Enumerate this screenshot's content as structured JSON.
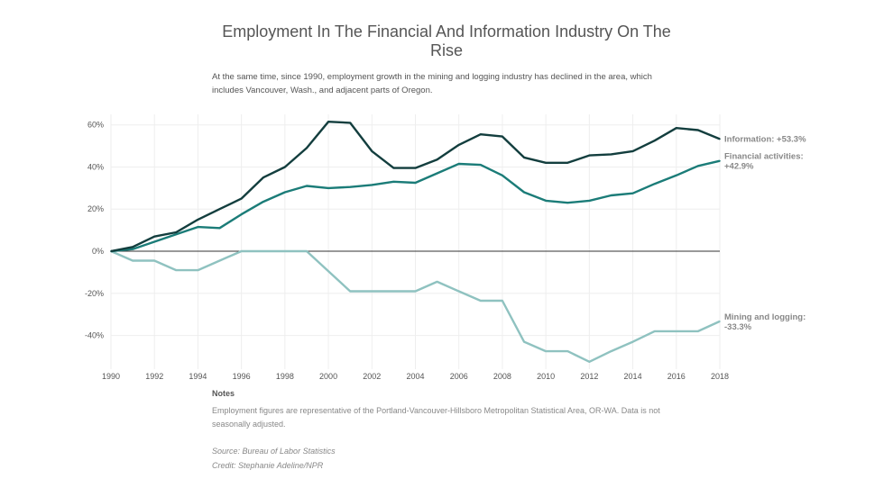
{
  "title": "Employment In The Financial And Information Industry On The Rise",
  "subtitle": "At the same time, since 1990, employment growth in the mining and logging industry has declined in the area, which includes Vancouver, Wash., and adjacent parts of Oregon.",
  "notes": {
    "heading": "Notes",
    "text": "Employment figures are representative of the Portland-Vancouver-Hillsboro Metropolitan Statistical Area, OR-WA. Data is not seasonally adjusted.",
    "source": "Source: Bureau of Labor Statistics",
    "credit": "Credit: Stephanie Adeline/NPR"
  },
  "colors": {
    "information": "#133e3e",
    "financial": "#1b7c78",
    "mining": "#8fc2c0",
    "grid": "#eeeeee",
    "zero": "#333333"
  },
  "chart_data": {
    "type": "line",
    "title": "Employment In The Financial And Information Industry On The Rise",
    "xlabel": "",
    "ylabel": "",
    "xlim": [
      1990,
      2018
    ],
    "ylim": [
      -56,
      65
    ],
    "grid": true,
    "x": [
      1990,
      1991,
      1992,
      1993,
      1994,
      1995,
      1996,
      1997,
      1998,
      1999,
      2000,
      2001,
      2002,
      2003,
      2004,
      2005,
      2006,
      2007,
      2008,
      2009,
      2010,
      2011,
      2012,
      2013,
      2014,
      2015,
      2016,
      2017,
      2018
    ],
    "x_ticks": [
      1990,
      1992,
      1994,
      1996,
      1998,
      2000,
      2002,
      2004,
      2006,
      2008,
      2010,
      2012,
      2014,
      2016,
      2018
    ],
    "y_ticks": [
      -40,
      -20,
      0,
      20,
      40,
      60
    ],
    "y_tick_labels": [
      "-40%",
      "-20%",
      "0%",
      "20%",
      "40%",
      "60%"
    ],
    "series": [
      {
        "name": "Information",
        "label": "Information: +53.3%",
        "label_lines": [
          "Information: +53.3%"
        ],
        "color_key": "information",
        "values": [
          0,
          2,
          7,
          9,
          15,
          20,
          25,
          35,
          40,
          49,
          61.5,
          61,
          47.5,
          39.5,
          39.5,
          43.5,
          50.5,
          55.5,
          54.5,
          44.5,
          42,
          42,
          45.5,
          46,
          47.5,
          52.5,
          58.5,
          57.5,
          53.3
        ]
      },
      {
        "name": "Financial activities",
        "label": "Financial activities: +42.9%",
        "label_lines": [
          "Financial activities:",
          "+42.9%"
        ],
        "color_key": "financial",
        "values": [
          0,
          1,
          4.5,
          8,
          11.5,
          11,
          17.5,
          23.5,
          28,
          31,
          30,
          30.5,
          31.5,
          33,
          32.5,
          37,
          41.5,
          41,
          36,
          28,
          24,
          23,
          24,
          26.5,
          27.5,
          32,
          36,
          40.5,
          42.9
        ]
      },
      {
        "name": "Mining and logging",
        "label": "Mining and logging: -33.3%",
        "label_lines": [
          "Mining and logging:",
          "-33.3%"
        ],
        "color_key": "mining",
        "values": [
          0,
          -4.5,
          -4.5,
          -9,
          -9,
          -4.5,
          0,
          0,
          0,
          0,
          -9.5,
          -19,
          -19,
          -19,
          -19,
          -14.5,
          -19,
          -23.5,
          -23.5,
          -43,
          -47.5,
          -47.5,
          -52.5,
          -47.5,
          -43,
          -38,
          -38,
          -38,
          -33.3
        ]
      }
    ]
  }
}
